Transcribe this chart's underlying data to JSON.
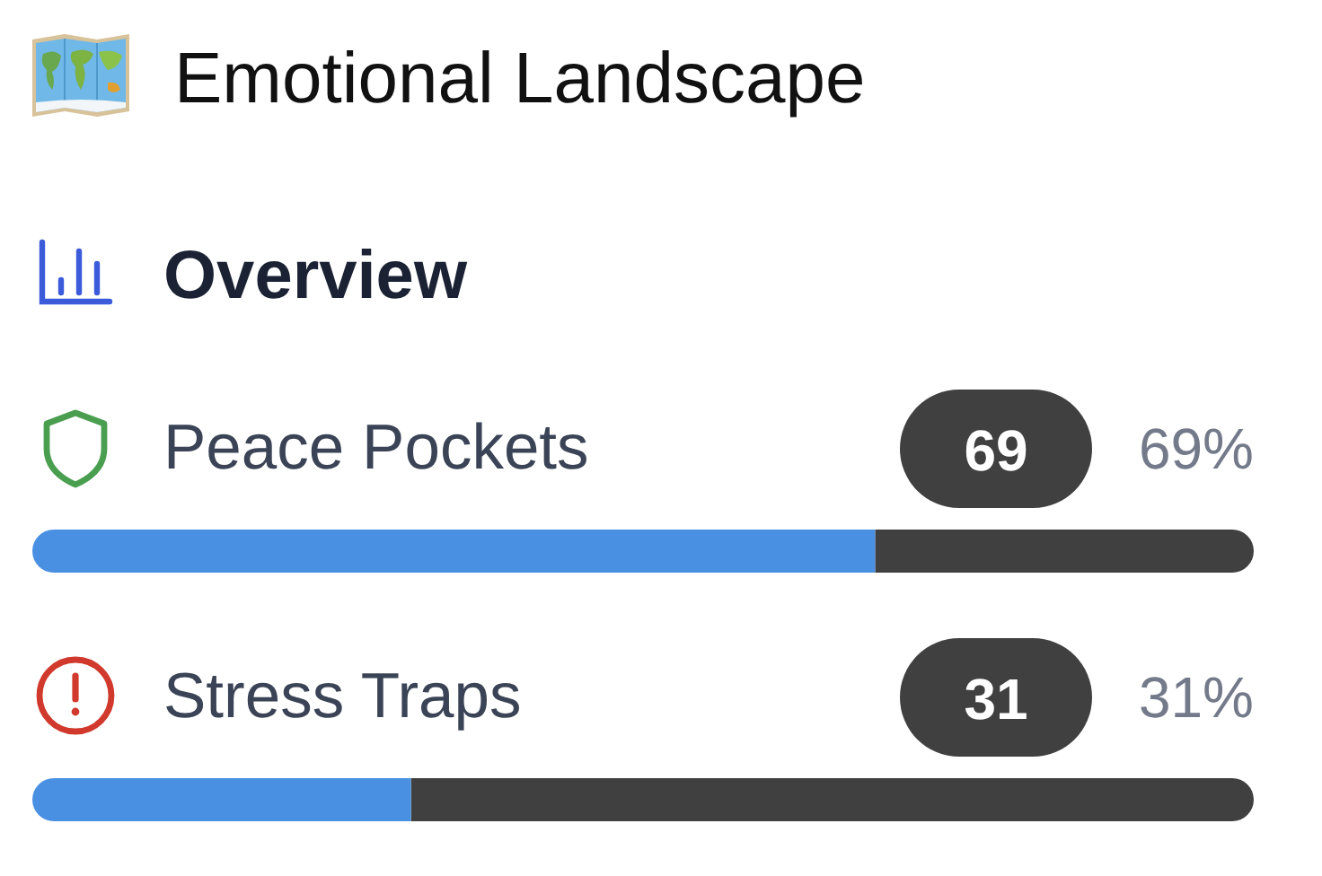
{
  "chart_data": {
    "type": "bar",
    "orientation": "horizontal",
    "title": "Emotional Landscape",
    "subtitle": "Overview",
    "categories": [
      "Peace Pockets",
      "Stress Traps"
    ],
    "values": [
      69,
      31
    ],
    "color": "#4a90e2",
    "xlim": [
      0,
      100
    ],
    "tick_labels": "y",
    "data_labels": true,
    "annotations": [
      "69%",
      "31%"
    ]
  }
}
